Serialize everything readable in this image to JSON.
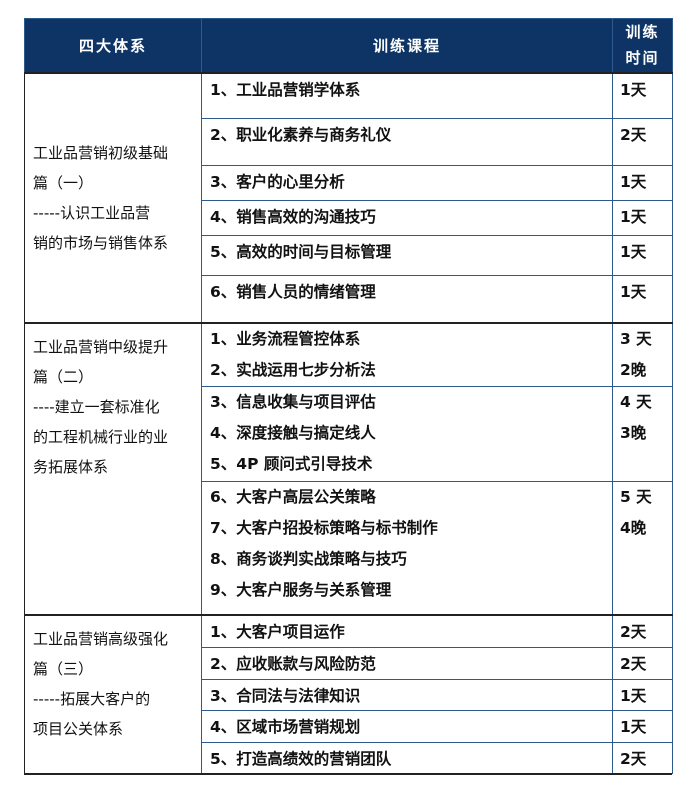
{
  "header": {
    "system": "四大体系",
    "course": "训练课程",
    "time_line1": "训练",
    "time_line2": "时间"
  },
  "groups": [
    {
      "system_lines": [
        "工业品营销初级基础",
        "篇（一）",
        "-----认识工业品营",
        "销的市场与销售体系"
      ],
      "rows": [
        {
          "courses": [
            "1、工业品营销学体系"
          ],
          "time": [
            "1天"
          ]
        },
        {
          "courses": [
            "2、职业化素养与商务礼仪"
          ],
          "time": [
            "2天"
          ]
        },
        {
          "courses": [
            "3、客户的心里分析"
          ],
          "time": [
            "1天"
          ]
        },
        {
          "courses": [
            "4、销售高效的沟通技巧"
          ],
          "time": [
            "1天"
          ]
        },
        {
          "courses": [
            "5、高效的时间与目标管理"
          ],
          "time": [
            "1天"
          ]
        },
        {
          "courses": [
            "6、销售人员的情绪管理"
          ],
          "time": [
            "1天"
          ]
        }
      ]
    },
    {
      "system_lines": [
        "工业品营销中级提升",
        "篇（二）",
        "----建立一套标准化",
        "的工程机械行业的业",
        "务拓展体系"
      ],
      "rows": [
        {
          "courses": [
            "1、业务流程管控体系",
            "2、实战运用七步分析法"
          ],
          "time": [
            "3 天",
            "2晚"
          ]
        },
        {
          "courses": [
            "3、信息收集与项目评估",
            "4、深度接触与搞定线人",
            "5、4P 顾问式引导技术"
          ],
          "time": [
            "4 天",
            "3晚"
          ]
        },
        {
          "courses": [
            "6、大客户高层公关策略",
            "7、大客户招投标策略与标书制作",
            "8、商务谈判实战策略与技巧",
            "9、大客户服务与关系管理"
          ],
          "time": [
            "5 天",
            "4晚"
          ]
        }
      ]
    },
    {
      "system_lines": [
        "工业品营销高级强化",
        "篇（三）",
        "-----拓展大客户的",
        "项目公关体系"
      ],
      "rows": [
        {
          "courses": [
            "1、大客户项目运作"
          ],
          "time": [
            "2天"
          ]
        },
        {
          "courses": [
            "2、应收账款与风险防范"
          ],
          "time": [
            "2天"
          ]
        },
        {
          "courses": [
            "3、合同法与法律知识"
          ],
          "time": [
            "1天"
          ]
        },
        {
          "courses": [
            "4、区域市场营销规划"
          ],
          "time": [
            "1天"
          ]
        },
        {
          "courses": [
            "5、打造高绩效的营销团队"
          ],
          "time": [
            "2天"
          ]
        }
      ]
    }
  ],
  "colors": {
    "header_bg": "#0d3465",
    "border": "#2d5a8c"
  }
}
